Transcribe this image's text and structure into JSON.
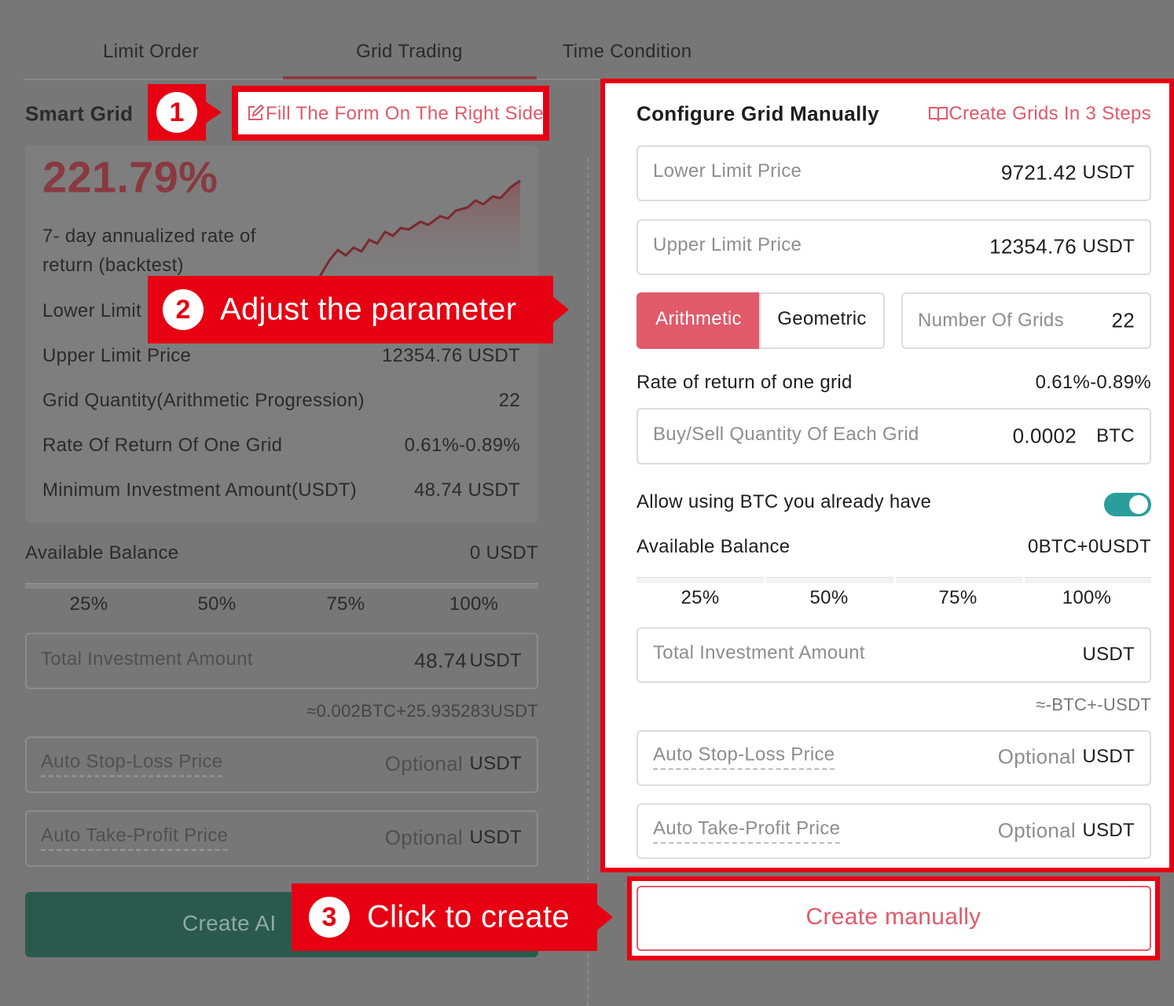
{
  "tabs": [
    "Limit Order",
    "Grid Trading",
    "Time Condition"
  ],
  "smart_grid": {
    "title": "Smart Grid",
    "rate": "221.79%",
    "caption_lines": [
      "7- day annualized rate of",
      "return (backtest)"
    ],
    "rows": [
      {
        "label": "Lower Limit"
      },
      {
        "label": "Upper Limit Price",
        "value": "12354.76 USDT"
      },
      {
        "label": "Grid Quantity(Arithmetic Progression)",
        "value": "22"
      },
      {
        "label": "Rate Of Return Of One Grid",
        "value": "0.61%-0.89%"
      },
      {
        "label": "Minimum Investment Amount(USDT)",
        "value": "48.74 USDT"
      }
    ],
    "available_balance": {
      "label": "Available Balance",
      "value": "0 USDT"
    },
    "percentages": [
      "25%",
      "50%",
      "75%",
      "100%"
    ],
    "total_investment": {
      "label": "Total Investment Amount",
      "amount": "48.74",
      "unit": "USDT"
    },
    "estimate": "≈0.002BTC+25.935283USDT",
    "stop_loss": {
      "label": "Auto Stop-Loss Price",
      "placeholder": "Optional",
      "unit": "USDT"
    },
    "take_profit": {
      "label": "Auto Take-Profit Price",
      "placeholder": "Optional",
      "unit": "USDT"
    },
    "button": "Create AI"
  },
  "callouts": [
    {
      "number": "1",
      "text": "Fill The Form On The Right Side"
    },
    {
      "number": "2",
      "text": "Adjust the parameter"
    },
    {
      "number": "3",
      "text": "Click to create"
    }
  ],
  "manual": {
    "title": "Configure Grid Manually",
    "help_link": "Create Grids In 3 Steps",
    "lower_limit": {
      "label": "Lower Limit Price",
      "value": "9721.42",
      "unit": "USDT"
    },
    "upper_limit": {
      "label": "Upper Limit Price",
      "value": "12354.76",
      "unit": "USDT"
    },
    "modes": [
      "Arithmetic",
      "Geometric"
    ],
    "grids": {
      "label": "Number Of Grids",
      "value": "22"
    },
    "rate": {
      "label": "Rate of return of one grid",
      "value": "0.61%-0.89%"
    },
    "quantity": {
      "label": "Buy/Sell Quantity Of Each Grid",
      "value": "0.0002",
      "unit": "BTC"
    },
    "allow_btc": "Allow using BTC you already have",
    "available_balance": {
      "label": "Available Balance",
      "value": "0BTC+0USDT"
    },
    "percentages": [
      "25%",
      "50%",
      "75%",
      "100%"
    ],
    "total_investment": {
      "label": "Total Investment Amount",
      "unit": "USDT"
    },
    "estimate": "≈-BTC+-USDT",
    "stop_loss": {
      "label": "Auto Stop-Loss Price",
      "placeholder": "Optional",
      "unit": "USDT"
    },
    "take_profit": {
      "label": "Auto Take-Profit Price",
      "placeholder": "Optional",
      "unit": "USDT"
    },
    "button": "Create manually"
  }
}
